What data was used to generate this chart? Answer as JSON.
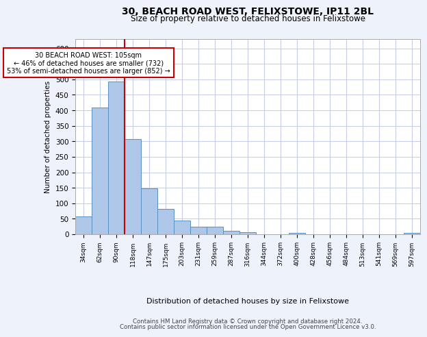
{
  "title1": "30, BEACH ROAD WEST, FELIXSTOWE, IP11 2BL",
  "title2": "Size of property relative to detached houses in Felixstowe",
  "xlabel": "Distribution of detached houses by size in Felixstowe",
  "ylabel": "Number of detached properties",
  "categories": [
    "34sqm",
    "62sqm",
    "90sqm",
    "118sqm",
    "147sqm",
    "175sqm",
    "203sqm",
    "231sqm",
    "259sqm",
    "287sqm",
    "316sqm",
    "344sqm",
    "372sqm",
    "400sqm",
    "428sqm",
    "456sqm",
    "484sqm",
    "513sqm",
    "541sqm",
    "569sqm",
    "597sqm"
  ],
  "values": [
    57,
    410,
    493,
    307,
    148,
    82,
    44,
    24,
    24,
    10,
    7,
    0,
    0,
    5,
    0,
    0,
    0,
    0,
    0,
    0,
    5
  ],
  "bar_color": "#aec6e8",
  "bar_edge_color": "#5a8fc0",
  "vline_x": 2.5,
  "vline_color": "#cc0000",
  "annotation_text": "30 BEACH ROAD WEST: 105sqm\n← 46% of detached houses are smaller (732)\n53% of semi-detached houses are larger (852) →",
  "annotation_box_color": "#ffffff",
  "annotation_box_edge": "#cc0000",
  "ylim": [
    0,
    630
  ],
  "yticks": [
    0,
    50,
    100,
    150,
    200,
    250,
    300,
    350,
    400,
    450,
    500,
    550,
    600
  ],
  "footer1": "Contains HM Land Registry data © Crown copyright and database right 2024.",
  "footer2": "Contains public sector information licensed under the Open Government Licence v3.0.",
  "bg_color": "#eef2fb",
  "plot_bg_color": "#ffffff",
  "grid_color": "#c8d0e8"
}
